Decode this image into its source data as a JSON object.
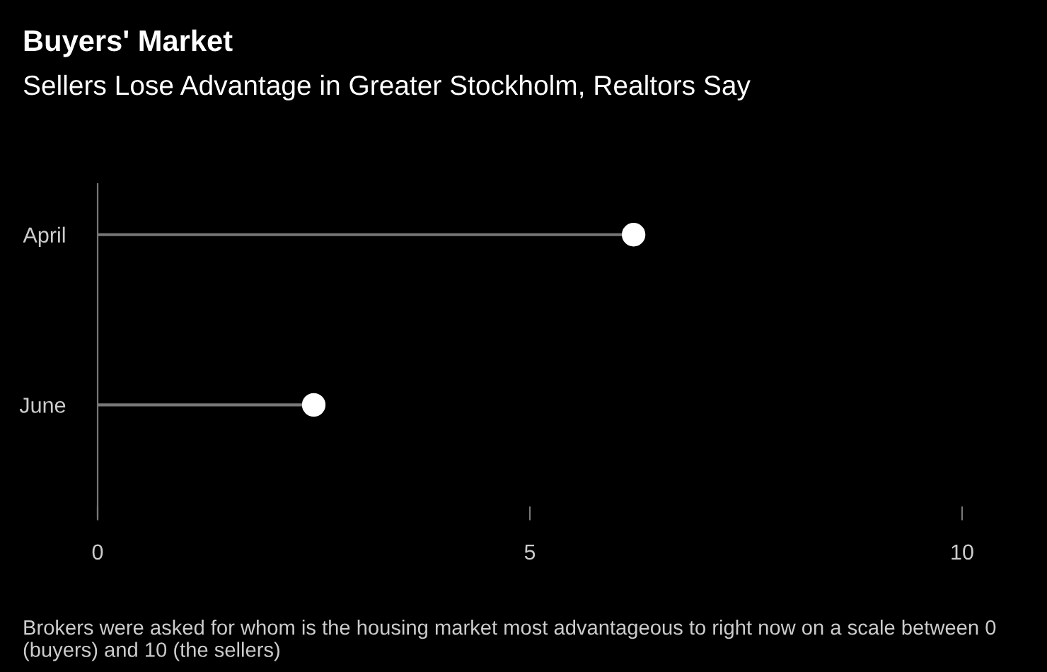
{
  "chart_data": {
    "type": "lollipop",
    "orientation": "horizontal",
    "title": "Buyers' Market",
    "subtitle": "Sellers Lose Advantage in Greater Stockholm, Realtors Say",
    "categories": [
      "April",
      "June"
    ],
    "series": [
      {
        "color": "#ffffff",
        "values": [
          6.2,
          2.5
        ]
      }
    ],
    "xlim": [
      0,
      10
    ],
    "xticks": [
      0,
      5,
      10
    ],
    "grid": false,
    "legend": false,
    "marker": "circle",
    "annotations": [
      "Brokers were asked for whom is the housing market most advantageous to right now on a scale between 0 (buyers) and 10 (the sellers)"
    ]
  }
}
